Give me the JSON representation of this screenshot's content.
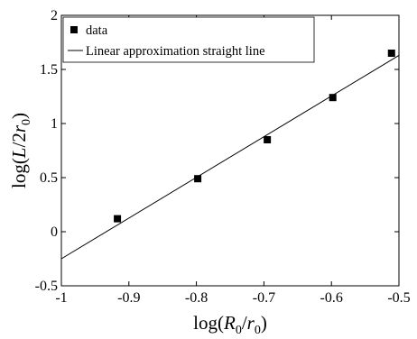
{
  "chart_data": {
    "type": "scatter",
    "title": "",
    "xlabel": "log(R₀/r₀)",
    "ylabel": "log(L/2r₀)",
    "xlim": [
      -1,
      -0.5
    ],
    "ylim": [
      -0.5,
      2
    ],
    "xticks": [
      "-1",
      "-0.9",
      "-0.8",
      "-0.7",
      "-0.6",
      "-0.5"
    ],
    "yticks": [
      "-0.5",
      "0",
      "0.5",
      "1",
      "1.5",
      "2"
    ],
    "legend_position": "top-left",
    "grid": false,
    "series": [
      {
        "name": "data",
        "marker": "square",
        "color": "#000000",
        "points": [
          {
            "x": -0.917,
            "y": 0.12
          },
          {
            "x": -0.798,
            "y": 0.49
          },
          {
            "x": -0.695,
            "y": 0.85
          },
          {
            "x": -0.598,
            "y": 1.24
          },
          {
            "x": -0.511,
            "y": 1.65
          }
        ]
      },
      {
        "name": "Linear approximation straight line",
        "type": "line",
        "color": "#000000",
        "points": [
          {
            "x": -1.0,
            "y": -0.25
          },
          {
            "x": -0.5,
            "y": 1.63
          }
        ]
      }
    ]
  }
}
